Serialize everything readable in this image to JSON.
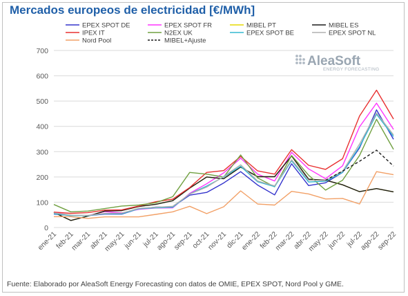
{
  "title": "Mercados europeos de electricidad [€/MWh]",
  "source": "Fuente: Elaborado por AleaSoft Energy Forecasting con datos de OMIE, EPEX SPOT, Nord Pool y GME.",
  "logo": {
    "name": "AleaSoft",
    "tagline": "ENERGY FORECASTING",
    "icon": "dot-grid-icon"
  },
  "chart_data": {
    "type": "line",
    "xlabel": "",
    "ylabel": "",
    "ylim": [
      0,
      700
    ],
    "yticks": [
      0,
      100,
      200,
      300,
      400,
      500,
      600,
      700
    ],
    "grid": true,
    "legend_position": "top",
    "categories": [
      "ene-21",
      "feb-21",
      "mar-21",
      "abr-21",
      "may-21",
      "jun-21",
      "jul-21",
      "ago-21",
      "sep-21",
      "oct-21",
      "nov-21",
      "dic-21",
      "ene-22",
      "feb-22",
      "mar-22",
      "abr-22",
      "may-22",
      "jun-22",
      "jul-22",
      "ago-22",
      "sep-22"
    ],
    "series": [
      {
        "name": "EPEX SPOT DE",
        "color": "#3333cc",
        "dash": false,
        "values": [
          53,
          48,
          47,
          53,
          53,
          74,
          81,
          82,
          128,
          139,
          176,
          221,
          168,
          129,
          252,
          166,
          177,
          218,
          315,
          465,
          349
        ]
      },
      {
        "name": "EPEX SPOT FR",
        "color": "#ff33ff",
        "dash": false,
        "values": [
          61,
          47,
          47,
          63,
          58,
          72,
          77,
          78,
          135,
          173,
          216,
          274,
          211,
          184,
          297,
          232,
          193,
          244,
          398,
          492,
          388
        ]
      },
      {
        "name": "MIBEL PT",
        "color": "#e6d800",
        "dash": false,
        "values": [
          60,
          28,
          45,
          65,
          67,
          83,
          92,
          106,
          156,
          200,
          193,
          239,
          201,
          201,
          283,
          191,
          187,
          169,
          142,
          154,
          141
        ]
      },
      {
        "name": "MIBEL ES",
        "color": "#1a1a1a",
        "dash": false,
        "values": [
          60,
          28,
          45,
          65,
          67,
          83,
          92,
          106,
          156,
          200,
          193,
          239,
          201,
          201,
          283,
          191,
          187,
          169,
          142,
          154,
          141
        ]
      },
      {
        "name": "IPEX IT",
        "color": "#e83030",
        "dash": false,
        "values": [
          61,
          56,
          59,
          69,
          70,
          85,
          102,
          112,
          158,
          218,
          225,
          281,
          224,
          211,
          308,
          246,
          230,
          272,
          441,
          543,
          429
        ]
      },
      {
        "name": "N2EX UK",
        "color": "#70a040",
        "dash": false,
        "values": [
          91,
          62,
          65,
          75,
          85,
          89,
          98,
          122,
          218,
          211,
          200,
          287,
          196,
          161,
          285,
          207,
          148,
          187,
          285,
          428,
          309
        ]
      },
      {
        "name": "EPEX SPOT BE",
        "color": "#33b8d0",
        "dash": false,
        "values": [
          55,
          47,
          47,
          55,
          55,
          74,
          78,
          80,
          133,
          164,
          200,
          242,
          181,
          162,
          264,
          180,
          183,
          218,
          320,
          448,
          360
        ]
      },
      {
        "name": "EPEX SPOT NL",
        "color": "#b0b0b0",
        "dash": false,
        "values": [
          58,
          49,
          48,
          56,
          57,
          76,
          80,
          84,
          132,
          160,
          202,
          248,
          184,
          165,
          268,
          187,
          186,
          222,
          330,
          453,
          366
        ]
      },
      {
        "name": "Nord Pool",
        "color": "#f2a066",
        "dash": false,
        "values": [
          43,
          43,
          36,
          42,
          42,
          42,
          52,
          62,
          84,
          55,
          82,
          145,
          93,
          89,
          143,
          133,
          113,
          115,
          93,
          221,
          209
        ]
      },
      {
        "name": "MIBEL+Ajuste",
        "color": "#1a1a1a",
        "dash": true,
        "values": [
          null,
          null,
          null,
          null,
          null,
          null,
          null,
          null,
          null,
          null,
          null,
          null,
          null,
          null,
          null,
          null,
          187,
          223,
          262,
          306,
          243
        ]
      }
    ]
  }
}
